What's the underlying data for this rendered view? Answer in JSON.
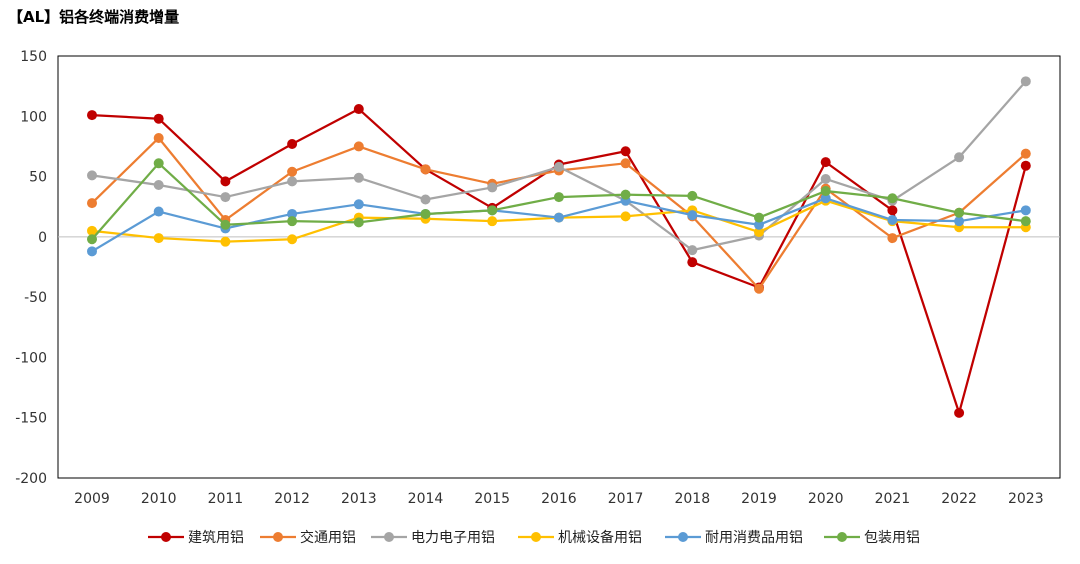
{
  "chart_data": {
    "type": "line",
    "title": "【AL】铝各终端消费增量",
    "xlabel": "",
    "ylabel": "",
    "categories": [
      "2009",
      "2010",
      "2011",
      "2012",
      "2013",
      "2014",
      "2015",
      "2016",
      "2017",
      "2018",
      "2019",
      "2020",
      "2021",
      "2022",
      "2023"
    ],
    "ylim": [
      -200,
      150
    ],
    "yticks": [
      150,
      100,
      50,
      0,
      -50,
      -100,
      -150,
      -200
    ],
    "ytick_labels": [
      "150",
      "100",
      "50",
      "0",
      "-50",
      "-100",
      "-150",
      "-200"
    ],
    "grid": false,
    "legend_position": "bottom",
    "series": [
      {
        "name": "建筑用铝",
        "color": "#C00000",
        "values": [
          101,
          98,
          46,
          77,
          106,
          56,
          24,
          60,
          71,
          -21,
          -42,
          62,
          22,
          -146,
          59
        ]
      },
      {
        "name": "交通用铝",
        "color": "#ED7D31",
        "values": [
          28,
          82,
          14,
          54,
          75,
          56,
          44,
          55,
          61,
          17,
          -43,
          40,
          -1,
          20,
          69
        ]
      },
      {
        "name": "电力电子用铝",
        "color": "#A5A5A5",
        "values": [
          51,
          43,
          33,
          46,
          49,
          31,
          41,
          58,
          30,
          -11,
          1,
          48,
          30,
          66,
          129
        ]
      },
      {
        "name": "机械设备用铝",
        "color": "#FFC000",
        "values": [
          5,
          -1,
          -4,
          -2,
          16,
          15,
          13,
          16,
          17,
          22,
          4,
          30,
          13,
          8,
          8
        ]
      },
      {
        "name": "耐用消费品用铝",
        "color": "#5B9BD5",
        "values": [
          -12,
          21,
          7,
          19,
          27,
          19,
          22,
          16,
          30,
          18,
          10,
          32,
          14,
          13,
          22
        ]
      },
      {
        "name": "包装用铝",
        "color": "#70AD47",
        "values": [
          -2,
          61,
          10,
          13,
          12,
          19,
          22,
          33,
          35,
          34,
          16,
          38,
          32,
          20,
          13
        ]
      }
    ]
  }
}
